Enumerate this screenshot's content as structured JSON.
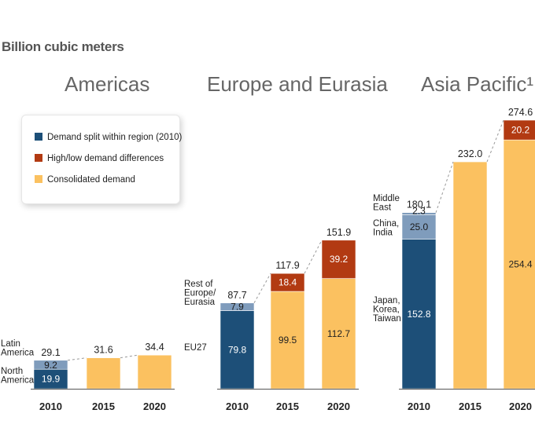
{
  "unit_label": "Billion cubic meters",
  "colors": {
    "demand_split": "#1d4f78",
    "demand_split_light": "#7f9cbc",
    "high_low": "#b23a12",
    "consolidated": "#fbc160"
  },
  "legend": [
    {
      "label": "Demand split within region (2010)",
      "color": "#1d4f78"
    },
    {
      "label": "High/low demand differences",
      "color": "#b23a12"
    },
    {
      "label": "Consolidated demand",
      "color": "#fbc160"
    }
  ],
  "chart_data": [
    {
      "type": "bar",
      "title": "Americas",
      "categories": [
        "2010",
        "2015",
        "2020"
      ],
      "series": [
        {
          "name": "North America",
          "values": [
            19.9,
            null,
            null
          ]
        },
        {
          "name": "Latin America",
          "values": [
            9.2,
            null,
            null
          ]
        },
        {
          "name": "Consolidated demand",
          "values": [
            null,
            31.6,
            34.4
          ]
        }
      ],
      "segment_labels": {
        "2010": [
          "North America",
          "Latin America"
        ]
      },
      "totals": [
        "29.1",
        "31.6",
        "34.4"
      ]
    },
    {
      "type": "bar",
      "title": "Europe and Eurasia",
      "categories": [
        "2010",
        "2015",
        "2020"
      ],
      "series": [
        {
          "name": "EU27",
          "values": [
            79.8,
            null,
            null
          ]
        },
        {
          "name": "Rest of Europe/ Eurasia",
          "values": [
            7.9,
            null,
            null
          ]
        },
        {
          "name": "Consolidated demand",
          "values": [
            null,
            99.5,
            112.7
          ]
        },
        {
          "name": "High/low demand differences",
          "values": [
            null,
            18.4,
            39.2
          ]
        }
      ],
      "totals": [
        "87.7",
        "117.9",
        "151.9"
      ]
    },
    {
      "type": "bar",
      "title": "Asia Pacific¹",
      "categories": [
        "2010",
        "2015",
        "2020"
      ],
      "series": [
        {
          "name": "Japan, Korea, Taiwan",
          "values": [
            152.8,
            null,
            null
          ]
        },
        {
          "name": "China, India",
          "values": [
            25.0,
            null,
            null
          ]
        },
        {
          "name": "Middle East",
          "values": [
            2.3,
            null,
            null
          ]
        },
        {
          "name": "Consolidated demand",
          "values": [
            null,
            232.0,
            254.4
          ]
        },
        {
          "name": "High/low demand differences",
          "values": [
            null,
            null,
            20.2
          ]
        }
      ],
      "totals": [
        "180.1",
        "232.0",
        "274.6"
      ]
    }
  ],
  "segment_value_labels": {
    "americas_2010": [
      "19.9",
      "9.2"
    ],
    "europe_2010": [
      "79.8",
      "7.9"
    ],
    "europe_2015": [
      "99.5",
      "18.4"
    ],
    "europe_2020": [
      "112.7",
      "39.2"
    ],
    "asia_2010": [
      "152.8",
      "25.0",
      "2.3"
    ],
    "asia_2020": [
      "254.4",
      "20.2"
    ]
  },
  "side_labels": {
    "latin_america": [
      "Latin",
      "America"
    ],
    "north_america": [
      "North",
      "America"
    ],
    "rest_of_europe": [
      "Rest of",
      "Europe/",
      "Eurasia"
    ],
    "eu27": [
      "EU27"
    ],
    "middle_east": [
      "Middle",
      "East"
    ],
    "china_india": [
      "China,",
      "India"
    ],
    "japan_korea_taiwan": [
      "Japan,",
      "Korea,",
      "Taiwan"
    ]
  }
}
